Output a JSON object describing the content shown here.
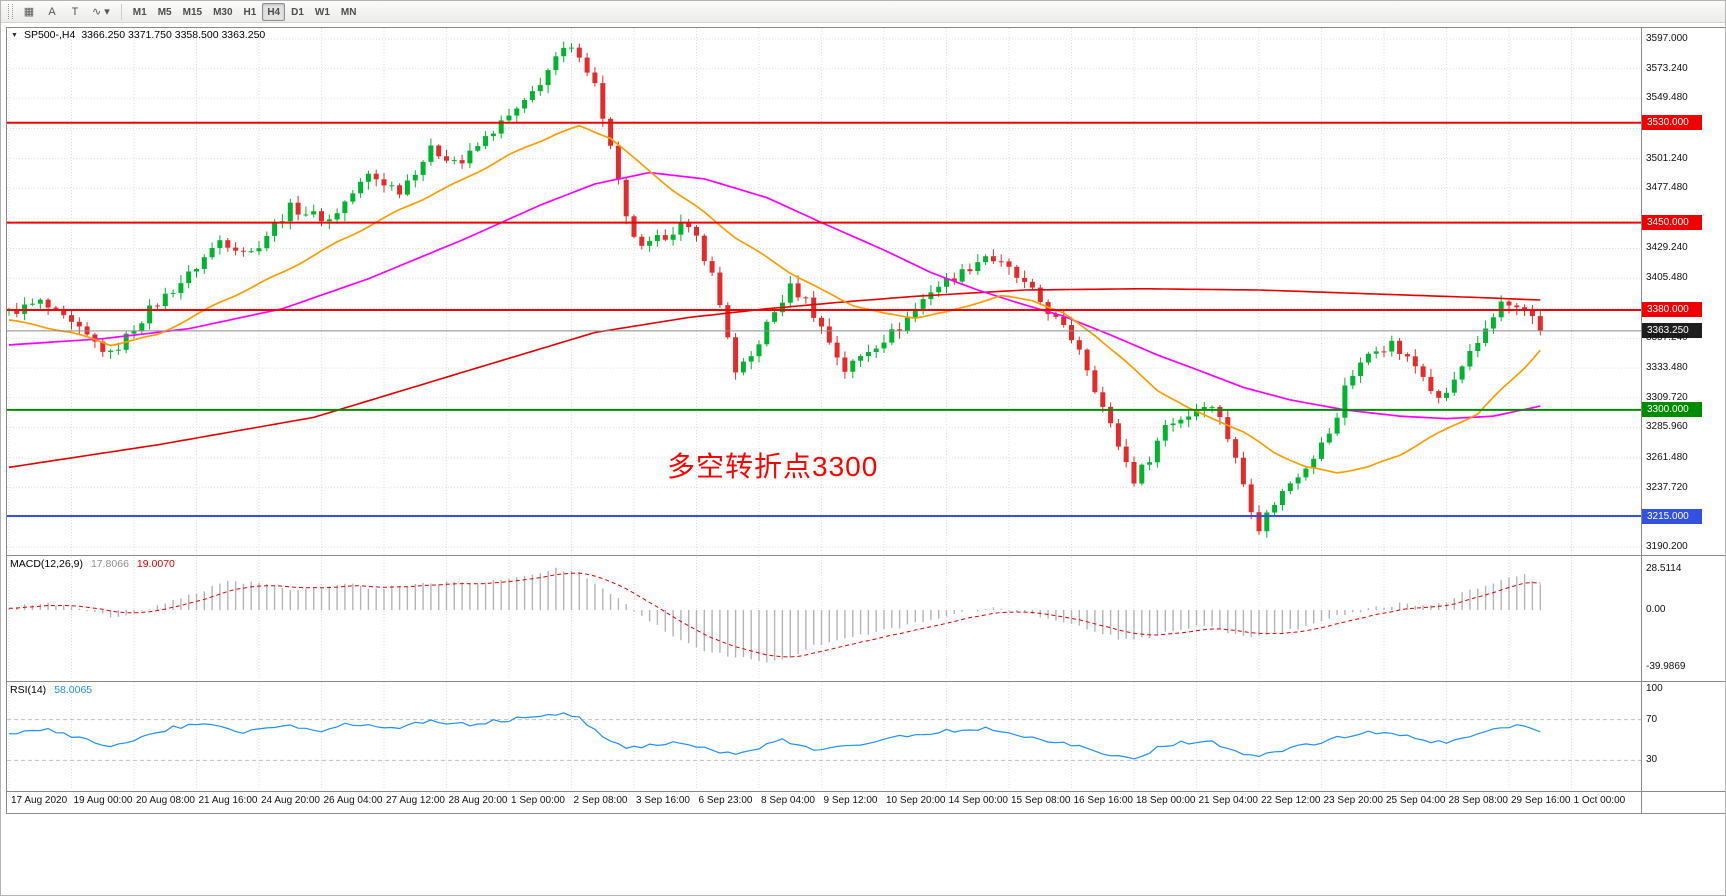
{
  "toolbar": {
    "icons": [
      {
        "name": "charts-grid-icon",
        "glyph": "▦"
      },
      {
        "name": "cursor-tool-icon",
        "glyph": "A"
      },
      {
        "name": "text-tool-icon",
        "glyph": "T"
      },
      {
        "name": "indicators-menu-icon",
        "glyph": "∿",
        "caret": "▾"
      }
    ],
    "timeframes": [
      "M1",
      "M5",
      "M15",
      "M30",
      "H1",
      "H4",
      "D1",
      "W1",
      "MN"
    ],
    "active_timeframe": "H4"
  },
  "price_panel": {
    "collapse_icon": "▼",
    "symbol_title": "SP500-,H4",
    "ohlc": "3366.250 3371.750 3358.500 3363.250",
    "annotation": "多空转折点3300",
    "current_price_label": "3363.250",
    "axis_labels": [
      "3597.000",
      "3573.240",
      "3549.480",
      "3501.240",
      "3477.480",
      "3429.240",
      "3405.480",
      "3357.240",
      "3333.480",
      "3309.720",
      "3285.960",
      "3261.480",
      "3237.720",
      "3190.200"
    ],
    "grid_values": [
      3597.0,
      3573.24,
      3549.48,
      3525.36,
      3501.24,
      3477.48,
      3453.36,
      3429.24,
      3405.48,
      3381.36,
      3357.24,
      3333.48,
      3309.72,
      3285.96,
      3261.48,
      3237.72,
      3213.96,
      3190.2
    ],
    "hlines": [
      {
        "price": 3530,
        "label": "3530.000",
        "color": "#f00000"
      },
      {
        "price": 3450,
        "label": "3450.000",
        "color": "#f00000"
      },
      {
        "price": 3380,
        "label": "3380.000",
        "color": "#f00000"
      },
      {
        "price": 3300,
        "label": "3300.000",
        "color": "#008c00"
      },
      {
        "price": 3215,
        "label": "3215.000",
        "color": "#3352e1"
      }
    ]
  },
  "macd_panel": {
    "label": "MACD(12,26,9)",
    "value_main": "17.8066",
    "value_signal": "19.0070",
    "axis_labels": [
      {
        "t": "28.5114",
        "v": 28.5114
      },
      {
        "t": "0.00",
        "v": 0
      },
      {
        "t": "-39.9869",
        "v": -39.9869
      }
    ]
  },
  "rsi_panel": {
    "label": "RSI(14)",
    "value": "58.0065",
    "axis_labels": [
      {
        "t": "100",
        "v": 100
      },
      {
        "t": "70",
        "v": 70
      },
      {
        "t": "30",
        "v": 30
      }
    ],
    "levels": [
      70,
      30
    ]
  },
  "time_axis": [
    "17 Aug 2020",
    "19 Aug 00:00",
    "20 Aug 08:00",
    "21 Aug 16:00",
    "24 Aug 20:00",
    "26 Aug 04:00",
    "27 Aug 12:00",
    "28 Aug 20:00",
    "1 Sep 00:00",
    "2 Sep 08:00",
    "3 Sep 16:00",
    "6 Sep 23:00",
    "8 Sep 04:00",
    "9 Sep 12:00",
    "10 Sep 20:00",
    "14 Sep 00:00",
    "15 Sep 08:00",
    "16 Sep 16:00",
    "18 Sep 00:00",
    "21 Sep 04:00",
    "22 Sep 12:00",
    "23 Sep 20:00",
    "25 Sep 04:00",
    "28 Sep 08:00",
    "29 Sep 16:00",
    "1 Oct 00:00"
  ],
  "colors": {
    "background": "#ffffff",
    "candle_up": "#00b52e",
    "candle_down": "#e32b2b",
    "ma_fast_orange": "#ff9d00",
    "ma_mid_magenta": "#ff00ff",
    "ma_slow_red": "#e60000",
    "grid": "#dedede",
    "macd_hist": "#b4b4b4",
    "macd_value": "#8f8f8f",
    "macd_signal": "#e00000",
    "rsi_line": "#1e90ff",
    "rsi_levels": "#c0c0c0",
    "current_price_line": "#8c8c8c",
    "current_badge_bg": "#1f1f1f",
    "panel_border": "#8a8a8a",
    "annotation_red": "#ff0000"
  },
  "chart_data": {
    "type": "candlestick",
    "symbol": "SP500",
    "timeframe": "H4",
    "bars": 197,
    "last_price": 3363.25,
    "current_ohlc": {
      "open": 3366.25,
      "high": 3371.75,
      "low": 3358.5,
      "close": 3363.25
    },
    "price_range": [
      3184,
      3607
    ],
    "price_anchors": [
      [
        0,
        3378
      ],
      [
        4,
        3386
      ],
      [
        8,
        3368
      ],
      [
        13,
        3344
      ],
      [
        18,
        3380
      ],
      [
        23,
        3408
      ],
      [
        27,
        3436
      ],
      [
        31,
        3426
      ],
      [
        36,
        3462
      ],
      [
        41,
        3452
      ],
      [
        46,
        3488
      ],
      [
        50,
        3476
      ],
      [
        54,
        3508
      ],
      [
        58,
        3498
      ],
      [
        62,
        3524
      ],
      [
        66,
        3545
      ],
      [
        69,
        3572
      ],
      [
        71,
        3588
      ],
      [
        73,
        3586
      ],
      [
        75,
        3560
      ],
      [
        77,
        3510
      ],
      [
        79,
        3452
      ],
      [
        81,
        3428
      ],
      [
        84,
        3440
      ],
      [
        86,
        3448
      ],
      [
        88,
        3438
      ],
      [
        90,
        3408
      ],
      [
        92,
        3360
      ],
      [
        93,
        3328
      ],
      [
        95,
        3342
      ],
      [
        97,
        3368
      ],
      [
        100,
        3398
      ],
      [
        102,
        3388
      ],
      [
        104,
        3366
      ],
      [
        107,
        3332
      ],
      [
        110,
        3348
      ],
      [
        114,
        3366
      ],
      [
        118,
        3396
      ],
      [
        122,
        3410
      ],
      [
        125,
        3424
      ],
      [
        128,
        3412
      ],
      [
        131,
        3394
      ],
      [
        134,
        3372
      ],
      [
        137,
        3350
      ],
      [
        140,
        3302
      ],
      [
        142,
        3272
      ],
      [
        144,
        3244
      ],
      [
        146,
        3262
      ],
      [
        148,
        3288
      ],
      [
        151,
        3296
      ],
      [
        153,
        3306
      ],
      [
        155,
        3296
      ],
      [
        157,
        3260
      ],
      [
        159,
        3222
      ],
      [
        160,
        3206
      ],
      [
        162,
        3226
      ],
      [
        164,
        3242
      ],
      [
        166,
        3256
      ],
      [
        168,
        3272
      ],
      [
        170,
        3292
      ],
      [
        171,
        3320
      ],
      [
        173,
        3338
      ],
      [
        175,
        3348
      ],
      [
        177,
        3352
      ],
      [
        179,
        3340
      ],
      [
        181,
        3330
      ],
      [
        183,
        3308
      ],
      [
        185,
        3322
      ],
      [
        187,
        3348
      ],
      [
        189,
        3362
      ],
      [
        191,
        3386
      ],
      [
        193,
        3380
      ],
      [
        195,
        3372
      ],
      [
        196,
        3363.25
      ]
    ],
    "ma_orange_anchors": [
      [
        0,
        3372
      ],
      [
        8,
        3362
      ],
      [
        13,
        3352
      ],
      [
        19,
        3360
      ],
      [
        27,
        3386
      ],
      [
        35,
        3410
      ],
      [
        42,
        3434
      ],
      [
        50,
        3460
      ],
      [
        58,
        3484
      ],
      [
        64,
        3504
      ],
      [
        70,
        3521
      ],
      [
        73,
        3527
      ],
      [
        77,
        3518
      ],
      [
        81,
        3496
      ],
      [
        85,
        3476
      ],
      [
        89,
        3458
      ],
      [
        93,
        3438
      ],
      [
        97,
        3422
      ],
      [
        100,
        3410
      ],
      [
        104,
        3396
      ],
      [
        108,
        3384
      ],
      [
        112,
        3377
      ],
      [
        116,
        3374
      ],
      [
        120,
        3378
      ],
      [
        124,
        3386
      ],
      [
        127,
        3391
      ],
      [
        131,
        3388
      ],
      [
        135,
        3377
      ],
      [
        139,
        3360
      ],
      [
        143,
        3338
      ],
      [
        147,
        3316
      ],
      [
        151,
        3301
      ],
      [
        155,
        3291
      ],
      [
        158,
        3282
      ],
      [
        162,
        3266
      ],
      [
        166,
        3254
      ],
      [
        170,
        3250
      ],
      [
        174,
        3254
      ],
      [
        178,
        3264
      ],
      [
        182,
        3278
      ],
      [
        185,
        3288
      ],
      [
        188,
        3297
      ],
      [
        191,
        3316
      ],
      [
        194,
        3334
      ],
      [
        196,
        3348
      ]
    ],
    "ma_magenta_anchors": [
      [
        0,
        3352
      ],
      [
        12,
        3357
      ],
      [
        23,
        3365
      ],
      [
        35,
        3381
      ],
      [
        46,
        3405
      ],
      [
        58,
        3436
      ],
      [
        68,
        3464
      ],
      [
        75,
        3481
      ],
      [
        82,
        3490
      ],
      [
        89,
        3485
      ],
      [
        97,
        3470
      ],
      [
        104,
        3450
      ],
      [
        112,
        3428
      ],
      [
        118,
        3410
      ],
      [
        124,
        3396
      ],
      [
        129,
        3386
      ],
      [
        135,
        3375
      ],
      [
        141,
        3360
      ],
      [
        147,
        3344
      ],
      [
        153,
        3330
      ],
      [
        158,
        3318
      ],
      [
        164,
        3308
      ],
      [
        171,
        3300
      ],
      [
        178,
        3295
      ],
      [
        184,
        3293
      ],
      [
        190,
        3295
      ],
      [
        196,
        3303
      ]
    ],
    "ma_red_anchors": [
      [
        0,
        3254
      ],
      [
        19,
        3272
      ],
      [
        39,
        3294
      ],
      [
        58,
        3330
      ],
      [
        75,
        3362
      ],
      [
        87,
        3374
      ],
      [
        97,
        3381
      ],
      [
        106,
        3386
      ],
      [
        116,
        3391
      ],
      [
        130,
        3396
      ],
      [
        145,
        3397
      ],
      [
        160,
        3396
      ],
      [
        174,
        3393
      ],
      [
        188,
        3390
      ],
      [
        196,
        3388
      ]
    ],
    "macd": {
      "current": 17.8066,
      "signal_current": 19.007,
      "range": [
        -45,
        30
      ],
      "anchors": [
        [
          0,
          2
        ],
        [
          5,
          4
        ],
        [
          9,
          1
        ],
        [
          13,
          -5
        ],
        [
          16,
          -2
        ],
        [
          20,
          4
        ],
        [
          24,
          12
        ],
        [
          28,
          20
        ],
        [
          32,
          19
        ],
        [
          36,
          14
        ],
        [
          40,
          16
        ],
        [
          43,
          18
        ],
        [
          47,
          15
        ],
        [
          51,
          17
        ],
        [
          55,
          19
        ],
        [
          59,
          18
        ],
        [
          63,
          21
        ],
        [
          67,
          25
        ],
        [
          70,
          28.5
        ],
        [
          73,
          26
        ],
        [
          76,
          16
        ],
        [
          79,
          4
        ],
        [
          82,
          -8
        ],
        [
          85,
          -18
        ],
        [
          88,
          -26
        ],
        [
          91,
          -31
        ],
        [
          94,
          -34
        ],
        [
          97,
          -37
        ],
        [
          100,
          -33
        ],
        [
          102,
          -27
        ],
        [
          105,
          -22
        ],
        [
          108,
          -18
        ],
        [
          111,
          -15
        ],
        [
          114,
          -12
        ],
        [
          117,
          -8
        ],
        [
          120,
          -4
        ],
        [
          123,
          -1
        ],
        [
          126,
          1
        ],
        [
          128,
          0
        ],
        [
          131,
          -3
        ],
        [
          134,
          -7
        ],
        [
          137,
          -12
        ],
        [
          140,
          -17
        ],
        [
          143,
          -21
        ],
        [
          146,
          -19
        ],
        [
          149,
          -15
        ],
        [
          152,
          -11
        ],
        [
          155,
          -13
        ],
        [
          157,
          -17
        ],
        [
          160,
          -19
        ],
        [
          163,
          -16
        ],
        [
          166,
          -11
        ],
        [
          169,
          -6
        ],
        [
          172,
          -2
        ],
        [
          175,
          2
        ],
        [
          178,
          4
        ],
        [
          181,
          3
        ],
        [
          184,
          6
        ],
        [
          186,
          12
        ],
        [
          189,
          18
        ],
        [
          192,
          22
        ],
        [
          194,
          24
        ],
        [
          196,
          17.8
        ]
      ]
    },
    "rsi": {
      "current": 58.0065,
      "levels": [
        70,
        30
      ],
      "anchors": [
        [
          0,
          55
        ],
        [
          5,
          60
        ],
        [
          9,
          52
        ],
        [
          13,
          44
        ],
        [
          16,
          50
        ],
        [
          21,
          62
        ],
        [
          26,
          66
        ],
        [
          30,
          58
        ],
        [
          35,
          64
        ],
        [
          40,
          60
        ],
        [
          44,
          66
        ],
        [
          49,
          62
        ],
        [
          54,
          68
        ],
        [
          59,
          65
        ],
        [
          64,
          70
        ],
        [
          68,
          74
        ],
        [
          70,
          76
        ],
        [
          73,
          72
        ],
        [
          76,
          55
        ],
        [
          79,
          42
        ],
        [
          82,
          45
        ],
        [
          85,
          48
        ],
        [
          88,
          44
        ],
        [
          91,
          38
        ],
        [
          93,
          35
        ],
        [
          96,
          42
        ],
        [
          99,
          50
        ],
        [
          101,
          46
        ],
        [
          104,
          40
        ],
        [
          107,
          44
        ],
        [
          110,
          48
        ],
        [
          113,
          52
        ],
        [
          116,
          55
        ],
        [
          119,
          58
        ],
        [
          122,
          60
        ],
        [
          125,
          62
        ],
        [
          128,
          57
        ],
        [
          131,
          53
        ],
        [
          134,
          48
        ],
        [
          137,
          44
        ],
        [
          139,
          38
        ],
        [
          142,
          34
        ],
        [
          144,
          32
        ],
        [
          147,
          42
        ],
        [
          150,
          47
        ],
        [
          153,
          50
        ],
        [
          155,
          45
        ],
        [
          158,
          36
        ],
        [
          160,
          33
        ],
        [
          163,
          40
        ],
        [
          166,
          45
        ],
        [
          169,
          50
        ],
        [
          172,
          55
        ],
        [
          175,
          58
        ],
        [
          178,
          55
        ],
        [
          181,
          50
        ],
        [
          184,
          46
        ],
        [
          187,
          55
        ],
        [
          190,
          62
        ],
        [
          193,
          64
        ],
        [
          195,
          60
        ],
        [
          196,
          58
        ]
      ]
    }
  }
}
